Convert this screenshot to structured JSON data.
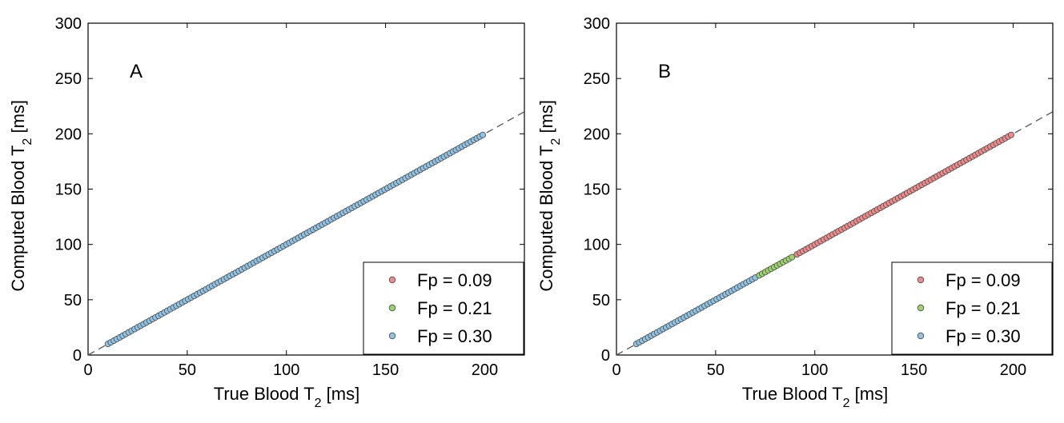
{
  "chart_data": [
    {
      "type": "scatter",
      "panel_label": "A",
      "xlabel_main": "True Blood T",
      "xlabel_sub": "2",
      "xlabel_unit": " [ms]",
      "ylabel_main": "Computed Blood T",
      "ylabel_sub": "2",
      "ylabel_unit": " [ms]",
      "xlim": [
        0,
        220
      ],
      "ylim": [
        0,
        300
      ],
      "xticks": [
        0,
        50,
        100,
        150,
        200
      ],
      "yticks": [
        0,
        50,
        100,
        150,
        200,
        250,
        300
      ],
      "grid": false,
      "identity_line": true,
      "legend_position": "bottom-right",
      "legend": [
        {
          "label": "Fp = 0.09",
          "color": "#f08a8a"
        },
        {
          "label": "Fp = 0.21",
          "color": "#9ad46a"
        },
        {
          "label": "Fp = 0.30",
          "color": "#8fc3e6"
        }
      ],
      "series": [
        {
          "name": "Fp = 0.30",
          "color": "#8fc3e6",
          "x_range": [
            10,
            200
          ],
          "step": 1.5,
          "relation": "y = x"
        }
      ]
    },
    {
      "type": "scatter",
      "panel_label": "B",
      "xlabel_main": "True Blood T",
      "xlabel_sub": "2",
      "xlabel_unit": " [ms]",
      "ylabel_main": "Computed Blood T",
      "ylabel_sub": "2",
      "ylabel_unit": " [ms]",
      "xlim": [
        0,
        220
      ],
      "ylim": [
        0,
        300
      ],
      "xticks": [
        0,
        50,
        100,
        150,
        200
      ],
      "yticks": [
        0,
        50,
        100,
        150,
        200,
        250,
        300
      ],
      "grid": false,
      "identity_line": true,
      "legend_position": "bottom-right",
      "legend": [
        {
          "label": "Fp = 0.09",
          "color": "#f08a8a"
        },
        {
          "label": "Fp = 0.21",
          "color": "#9ad46a"
        },
        {
          "label": "Fp = 0.30",
          "color": "#8fc3e6"
        }
      ],
      "series": [
        {
          "name": "Fp = 0.30",
          "color": "#8fc3e6",
          "x_range": [
            10,
            70
          ],
          "step": 1.5,
          "relation": "y = x"
        },
        {
          "name": "Fp = 0.21",
          "color": "#9ad46a",
          "x_range": [
            72,
            89
          ],
          "step": 1.5,
          "relation": "y = x"
        },
        {
          "name": "Fp = 0.09",
          "color": "#f08a8a",
          "x_range": [
            91,
            200
          ],
          "step": 1.5,
          "relation": "y = x"
        }
      ]
    }
  ]
}
